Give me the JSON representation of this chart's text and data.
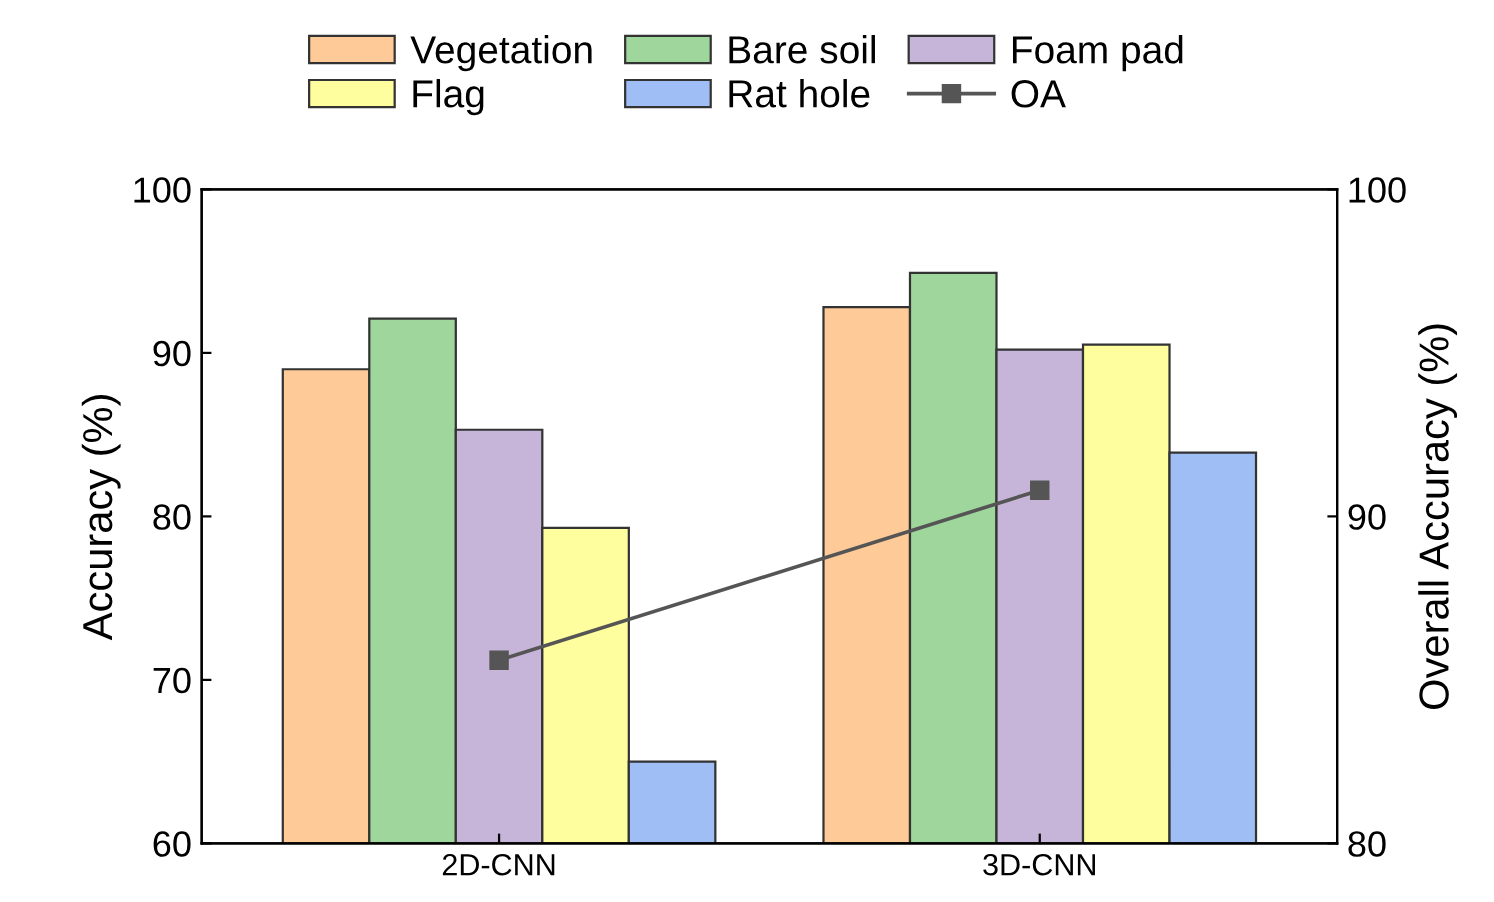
{
  "chart_data": {
    "type": "bar",
    "categories": [
      "2D-CNN",
      "3D-CNN"
    ],
    "ylabel": "Accuracy (%)",
    "y2label": "Overall Accuracy (%)",
    "series": [
      {
        "name": "Vegetation",
        "color": "#fdca98",
        "values": [
          89.0,
          92.8
        ]
      },
      {
        "name": "Bare soil",
        "color": "#9ed69c",
        "values": [
          92.1,
          94.9
        ]
      },
      {
        "name": "Foam pad",
        "color": "#c7b4d9",
        "values": [
          85.3,
          90.2
        ]
      },
      {
        "name": "Flag",
        "color": "#fefe9e",
        "values": [
          79.3,
          90.5
        ]
      },
      {
        "name": "Rat hole",
        "color": "#9fbef6",
        "values": [
          65.0,
          83.9
        ]
      },
      {
        "name": "OA",
        "type": "line",
        "axis": "y2",
        "color": "#555555",
        "marker": "square",
        "values": [
          85.6,
          90.8
        ]
      }
    ],
    "ylim": [
      60,
      100
    ],
    "yticks": [
      60,
      70,
      80,
      90,
      100
    ],
    "y2lim": [
      80,
      100
    ],
    "y2ticks": [
      80,
      90,
      100
    ],
    "legend": "top",
    "grid": false
  }
}
